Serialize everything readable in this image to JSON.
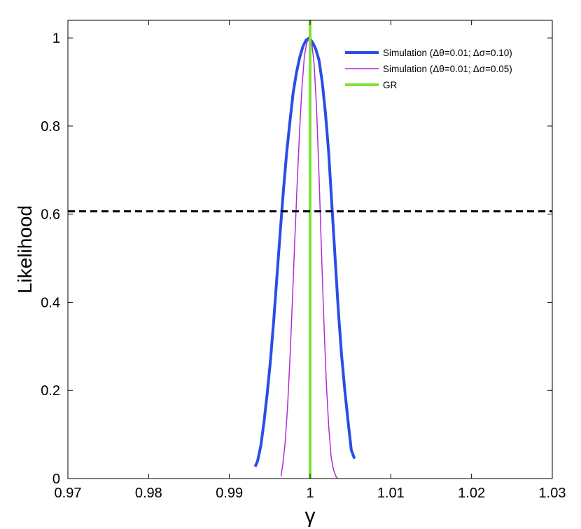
{
  "chart_data": {
    "type": "line",
    "title": "",
    "xlabel": "γ",
    "ylabel": "Likelihood",
    "xlim": [
      0.97,
      1.03
    ],
    "ylim": [
      0,
      1.04
    ],
    "xticks": [
      0.97,
      0.98,
      0.99,
      1,
      1.01,
      1.02,
      1.03
    ],
    "xtick_labels": [
      "0.97",
      "0.98",
      "0.99",
      "1",
      "1.01",
      "1.02",
      "1.03"
    ],
    "yticks": [
      0,
      0.2,
      0.4,
      0.6,
      0.8,
      1
    ],
    "ytick_labels": [
      "0",
      "0.2",
      "0.4",
      "0.6",
      "0.8",
      "1"
    ],
    "grid": false,
    "legend_position": "top-right",
    "series": [
      {
        "name": "Simulation (Δθ=0.01; Δσ=0.10)",
        "color": "#2a4de8",
        "x": [
          0.9932,
          0.9935,
          0.9939,
          0.9943,
          0.9947,
          0.9951,
          0.9955,
          0.9959,
          0.9963,
          0.9967,
          0.9971,
          0.9975,
          0.9979,
          0.9983,
          0.9987,
          0.9991,
          0.9995,
          0.9999,
          1.0003,
          1.0007,
          1.0011,
          1.0015,
          1.0019,
          1.0023,
          1.0027,
          1.0031,
          1.0035,
          1.0039,
          1.0043,
          1.0047,
          1.0051,
          1.0055
        ],
        "y": [
          0.027,
          0.04,
          0.075,
          0.13,
          0.195,
          0.27,
          0.36,
          0.46,
          0.56,
          0.655,
          0.74,
          0.81,
          0.875,
          0.92,
          0.955,
          0.98,
          0.995,
          1.0,
          0.99,
          0.975,
          0.95,
          0.9,
          0.83,
          0.74,
          0.62,
          0.5,
          0.38,
          0.28,
          0.2,
          0.13,
          0.065,
          0.045
        ]
      },
      {
        "name": "Simulation (Δθ=0.01; Δσ=0.05)",
        "color": "#b02bd6",
        "x": [
          0.9964,
          0.9966,
          0.9969,
          0.9972,
          0.9975,
          0.9978,
          0.9981,
          0.9984,
          0.9987,
          0.999,
          0.9993,
          0.9996,
          0.9999,
          1.0002,
          1.0005,
          1.0008,
          1.0011,
          1.0014,
          1.0017,
          1.002,
          1.0023,
          1.0026,
          1.0029,
          1.0032,
          1.0034
        ],
        "y": [
          0.005,
          0.03,
          0.08,
          0.16,
          0.27,
          0.4,
          0.54,
          0.67,
          0.79,
          0.89,
          0.96,
          0.99,
          1.0,
          0.99,
          0.94,
          0.84,
          0.69,
          0.52,
          0.36,
          0.22,
          0.12,
          0.05,
          0.02,
          0.005,
          0.0
        ]
      },
      {
        "name": "GR",
        "color": "#7be334",
        "x": [
          1.0,
          1.0
        ],
        "y": [
          0,
          1.04
        ]
      }
    ],
    "reference_line": {
      "y": 0.6065,
      "style": "dashed",
      "color": "#000000"
    }
  }
}
